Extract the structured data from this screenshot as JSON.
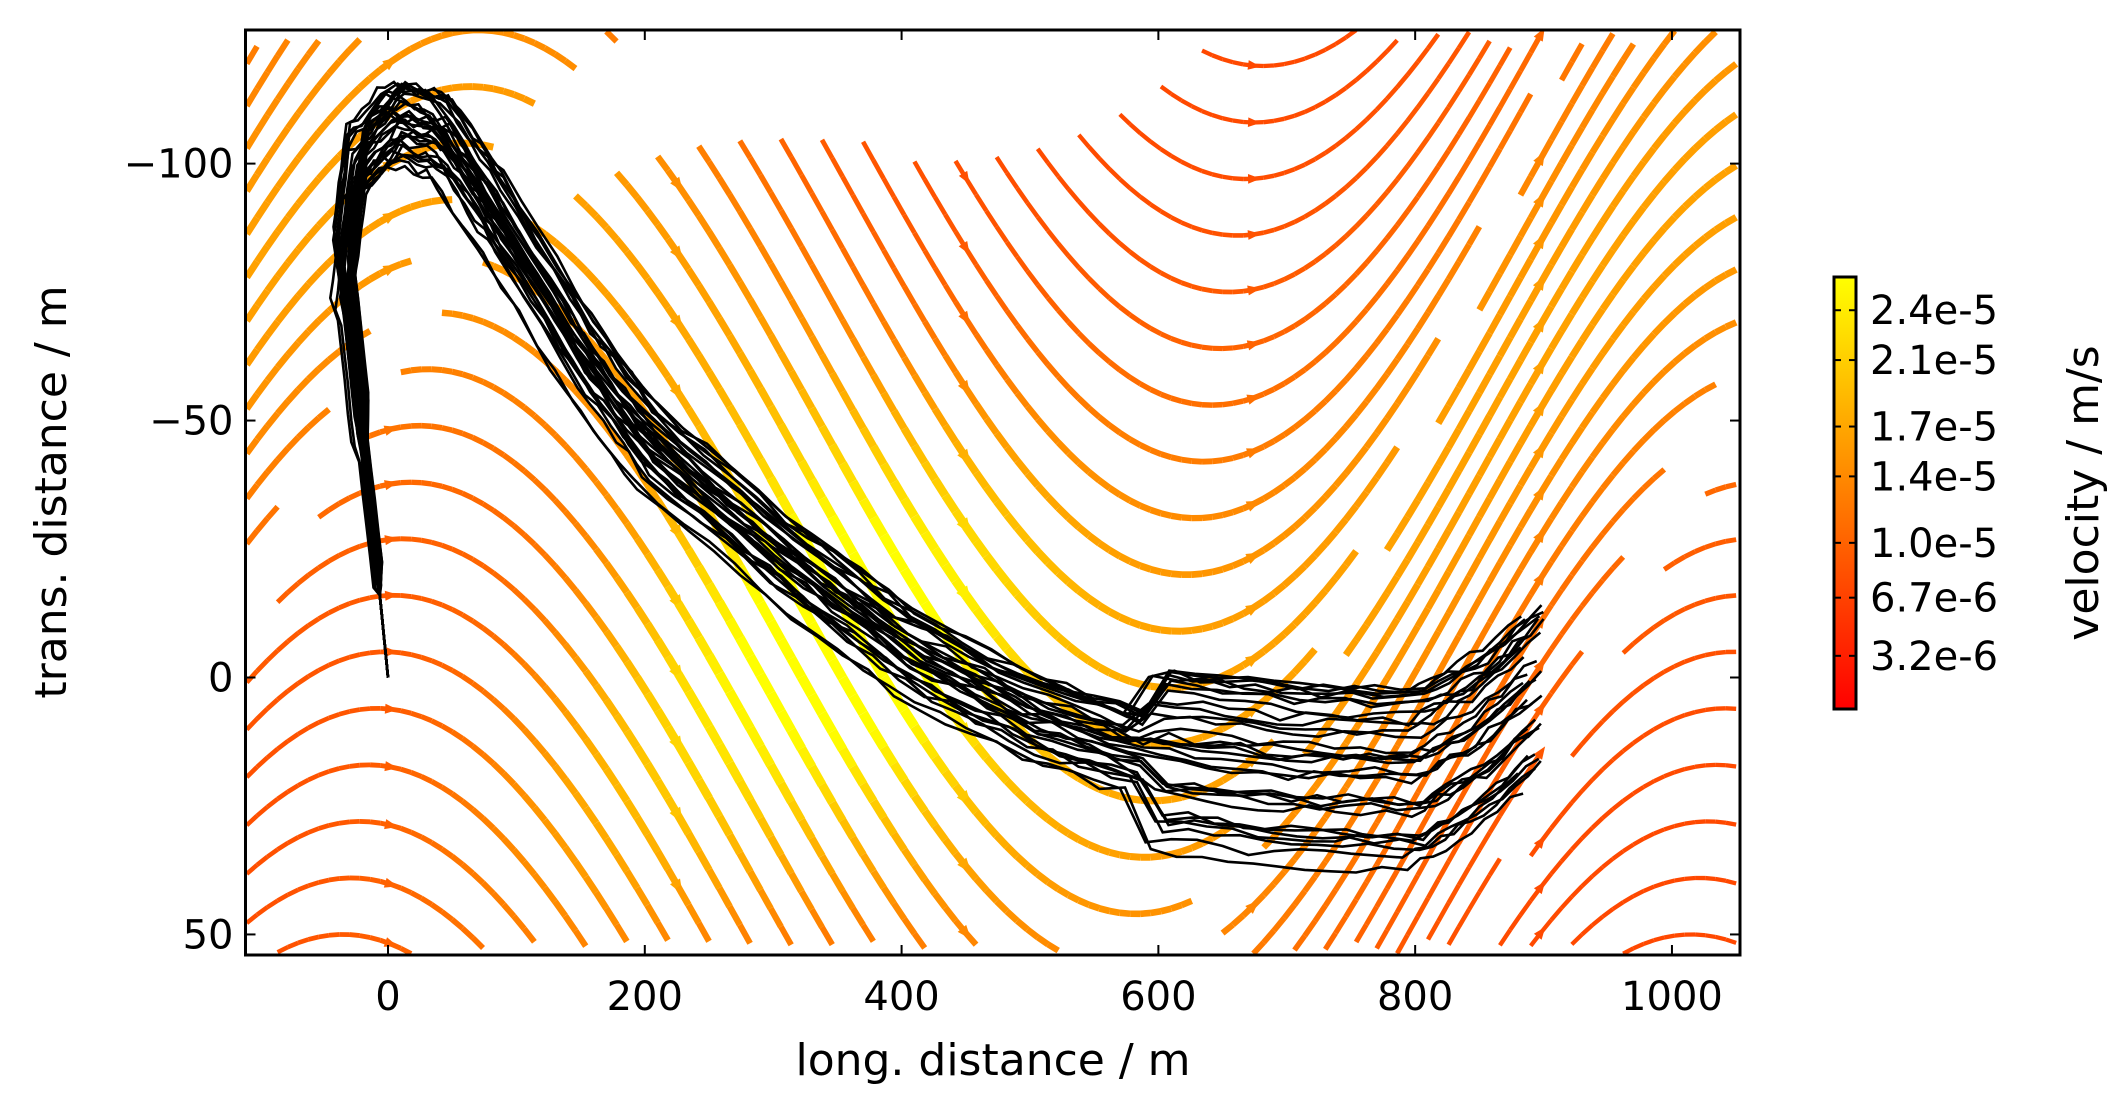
{
  "chart_data": {
    "type": "streamplot",
    "title": "",
    "xlabel": "long. distance / m",
    "ylabel": "trans. distance / m",
    "xlim": [
      -111,
      1053
    ],
    "ylim": [
      -126,
      54
    ],
    "y_inverted": true,
    "xticks": [
      0,
      200,
      400,
      600,
      800,
      1000
    ],
    "xtick_labels": [
      "0",
      "200",
      "400",
      "600",
      "800",
      "1000"
    ],
    "yticks": [
      -100,
      -50,
      0,
      50
    ],
    "ytick_labels": [
      "−100",
      "−50",
      "0",
      "50"
    ],
    "grid": false,
    "colorbar": {
      "label": "velocity / m/s",
      "colormap": "autumn",
      "range": [
        0,
        2.6e-05
      ],
      "ticks": [
        2.4e-05,
        2.1e-05,
        1.7e-05,
        1.4e-05,
        1e-05,
        6.7e-06,
        3.2e-06
      ],
      "tick_labels": [
        "2.4e-5",
        "2.1e-5",
        "1.7e-5",
        "1.4e-5",
        "1.0e-5",
        "6.7e-6",
        "3.2e-6"
      ],
      "colors": [
        "#ff0000",
        "#ffff00"
      ]
    },
    "streamline_color_low": "#ff0000",
    "streamline_color_high": "#ffff00",
    "trajectories": {
      "color": "#000000",
      "mean_path": [
        [
          0,
          0
        ],
        [
          -8,
          -20
        ],
        [
          -22,
          -50
        ],
        [
          -35,
          -80
        ],
        [
          -25,
          -100
        ],
        [
          5,
          -108
        ],
        [
          40,
          -105
        ],
        [
          80,
          -90
        ],
        [
          150,
          -62
        ],
        [
          200,
          -45
        ],
        [
          300,
          -24
        ],
        [
          400,
          -5
        ],
        [
          500,
          8
        ],
        [
          600,
          16
        ],
        [
          700,
          19
        ],
        [
          800,
          20
        ],
        [
          850,
          13
        ],
        [
          900,
          2
        ]
      ],
      "spread": 8
    }
  }
}
